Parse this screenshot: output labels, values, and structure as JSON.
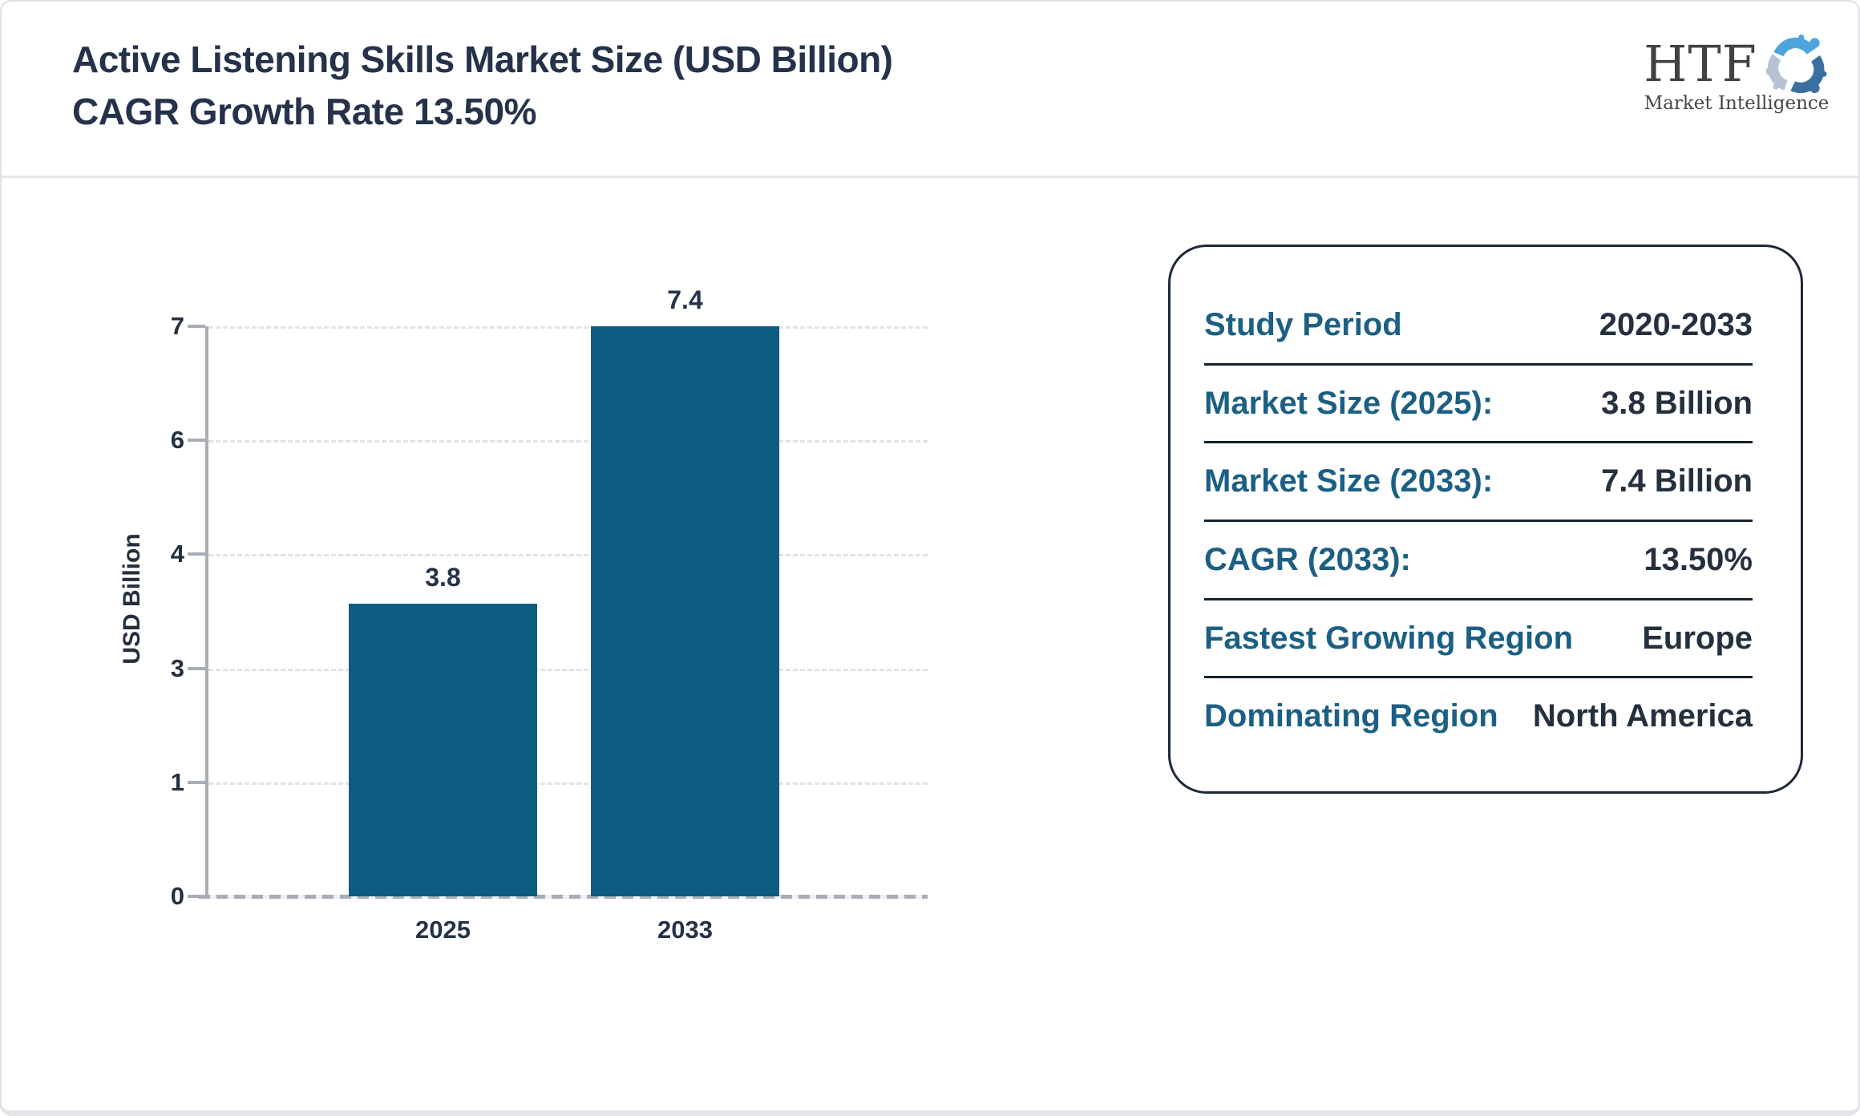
{
  "header": {
    "title_line1": "Active Listening Skills Market Size (USD Billion)",
    "title_line2": "CAGR Growth Rate 13.50%"
  },
  "logo": {
    "name": "HTF",
    "tagline": "Market Intelligence"
  },
  "chart_data": {
    "type": "bar",
    "title": "Active Listening Skills Market Size (USD Billion) CAGR Growth Rate 13.50%",
    "categories": [
      "2025",
      "2033"
    ],
    "values": [
      3.8,
      7.4
    ],
    "bar_value_labels": [
      "3.8",
      "7.4"
    ],
    "xlabel": "",
    "ylabel": "USD Billion",
    "ylim": [
      0,
      7.4
    ],
    "ytick_labels_top_to_bottom": [
      "7",
      "6",
      "4",
      "3",
      "1",
      "0"
    ],
    "grid": "horizontal-dashed",
    "legend": "none",
    "bar_color": "#0d5c82"
  },
  "info_panel": {
    "rows": [
      {
        "label": "Study Period",
        "value": "2020-2033"
      },
      {
        "label": "Market Size (2025):",
        "value": "3.8 Billion"
      },
      {
        "label": "Market Size (2033):",
        "value": "7.4 Billion"
      },
      {
        "label": "CAGR (2033):",
        "value": "13.50%"
      },
      {
        "label": "Fastest Growing Region",
        "value": "Europe"
      },
      {
        "label": "Dominating Region",
        "value": "North America"
      }
    ]
  },
  "colors": {
    "bar": "#0d5c82",
    "accent_label": "#1c5f84",
    "text_dark": "#25303f",
    "axis_gray": "#a9aeb6",
    "grid_gray": "#e3e3e3"
  }
}
